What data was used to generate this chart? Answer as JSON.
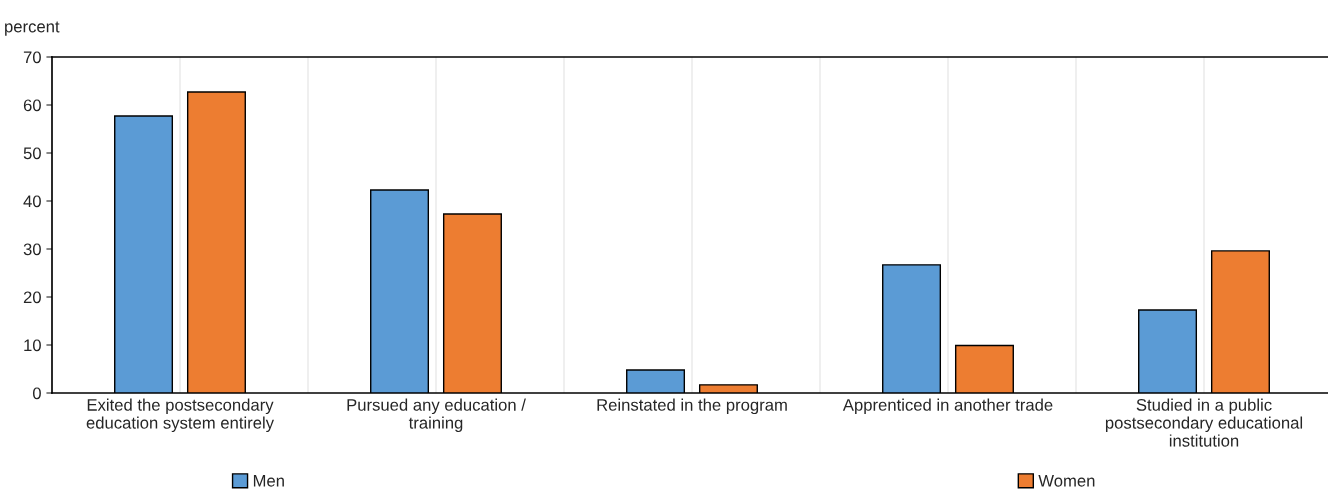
{
  "chart_data": {
    "type": "bar",
    "ylabel": "percent",
    "categories": [
      "Exited the postsecondary\neducation system entirely",
      "Pursued any education /\ntraining",
      "Reinstated in the program",
      "Apprenticed in another trade",
      "Studied in a public\npostsecondary educational\ninstitution"
    ],
    "series": [
      {
        "name": "Men",
        "color": "#5b9bd5",
        "values": [
          57.7,
          42.3,
          4.8,
          26.7,
          17.3
        ]
      },
      {
        "name": "Women",
        "color": "#ed7d31",
        "values": [
          62.7,
          37.3,
          1.7,
          9.9,
          29.6
        ]
      }
    ],
    "ylim": [
      0,
      70
    ],
    "yticks": [
      0,
      10,
      20,
      30,
      40,
      50,
      60,
      70
    ],
    "grid": "x",
    "legend": "bottom"
  }
}
